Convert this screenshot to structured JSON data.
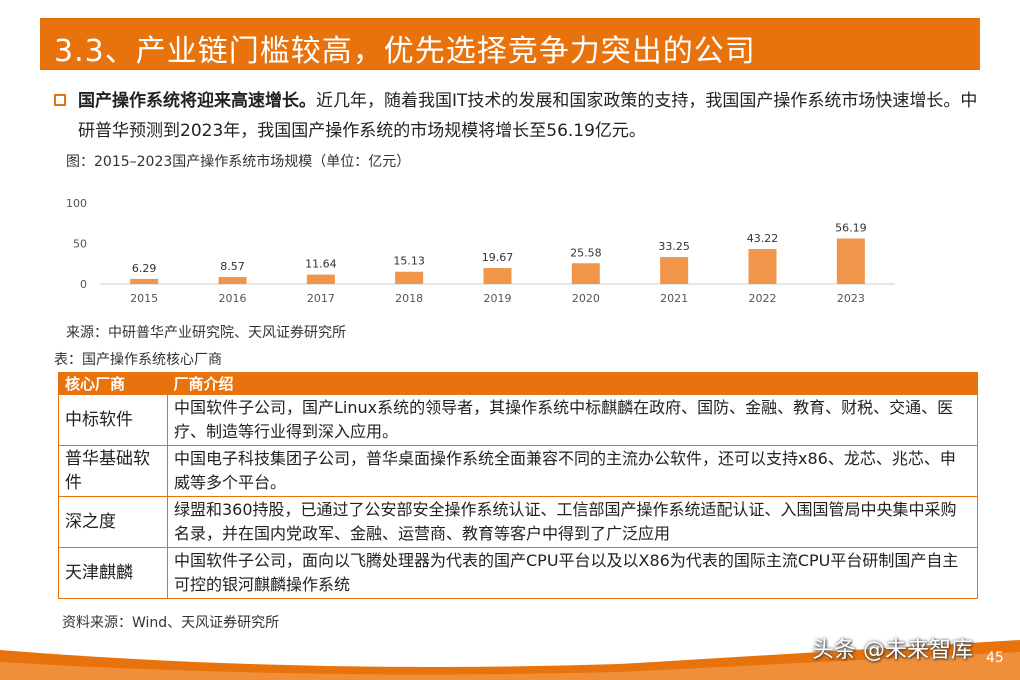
{
  "section_title": "3.3、产业链门槛较高，优先选择竞争力突出的公司",
  "bullet": {
    "lead": "国产操作系统将迎来高速增长。",
    "body": "近几年，随着我国IT技术的发展和国家政策的支持，我国国产操作系统市场快速增长。中研普华预测到2023年，我国国产操作系统的市场规模将增长至56.19亿元。"
  },
  "chart_caption": "图：2015–2023国产操作系统市场规模（单位：亿元）",
  "chart_data": {
    "type": "bar",
    "title": "2015–2023国产操作系统市场规模（单位：亿元）",
    "categories": [
      "2015",
      "2016",
      "2017",
      "2018",
      "2019",
      "2020",
      "2021",
      "2022",
      "2023"
    ],
    "values": [
      6.29,
      8.57,
      11.64,
      15.13,
      19.67,
      25.58,
      33.25,
      43.22,
      56.19
    ],
    "value_labels": [
      "6.29",
      "8.57",
      "11.64",
      "15.13",
      "19.67",
      "25.58",
      "33.25",
      "43.22",
      "56.19"
    ],
    "yticks": [
      "0",
      "50",
      "100"
    ],
    "ylim": [
      0,
      100
    ],
    "grid": false,
    "bar_color": "#f0954a"
  },
  "source1": "来源：中研普华产业研究院、天风证券研究所",
  "table_caption": "表：国产操作系统核心厂商",
  "table": {
    "headers": [
      "核心厂商",
      "厂商介绍"
    ],
    "rows": [
      {
        "name": "中标软件",
        "desc": "中国软件子公司，国产Linux系统的领导者，其操作系统中标麒麟在政府、国防、金融、教育、财税、交通、医疗、制造等行业得到深入应用。"
      },
      {
        "name": "普华基础软件",
        "desc": "中国电子科技集团子公司，普华桌面操作系统全面兼容不同的主流办公软件，还可以支持x86、龙芯、兆芯、申威等多个平台。"
      },
      {
        "name": "深之度",
        "desc": "绿盟和360持股，已通过了公安部安全操作系统认证、工信部国产操作系统适配认证、入围国管局中央集中采购名录，并在国内党政军、金融、运营商、教育等客户中得到了广泛应用"
      },
      {
        "name": "天津麒麟",
        "desc": "中国软件子公司，面向以飞腾处理器为代表的国产CPU平台以及以X86为代表的国际主流CPU平台研制国产自主可控的银河麒麟操作系统"
      }
    ]
  },
  "source2": "资料来源：Wind、天风证券研究所",
  "watermark": "头条 @未来智库",
  "page_number": "45",
  "colors": {
    "accent": "#e8720c",
    "bar": "#f0954a"
  }
}
